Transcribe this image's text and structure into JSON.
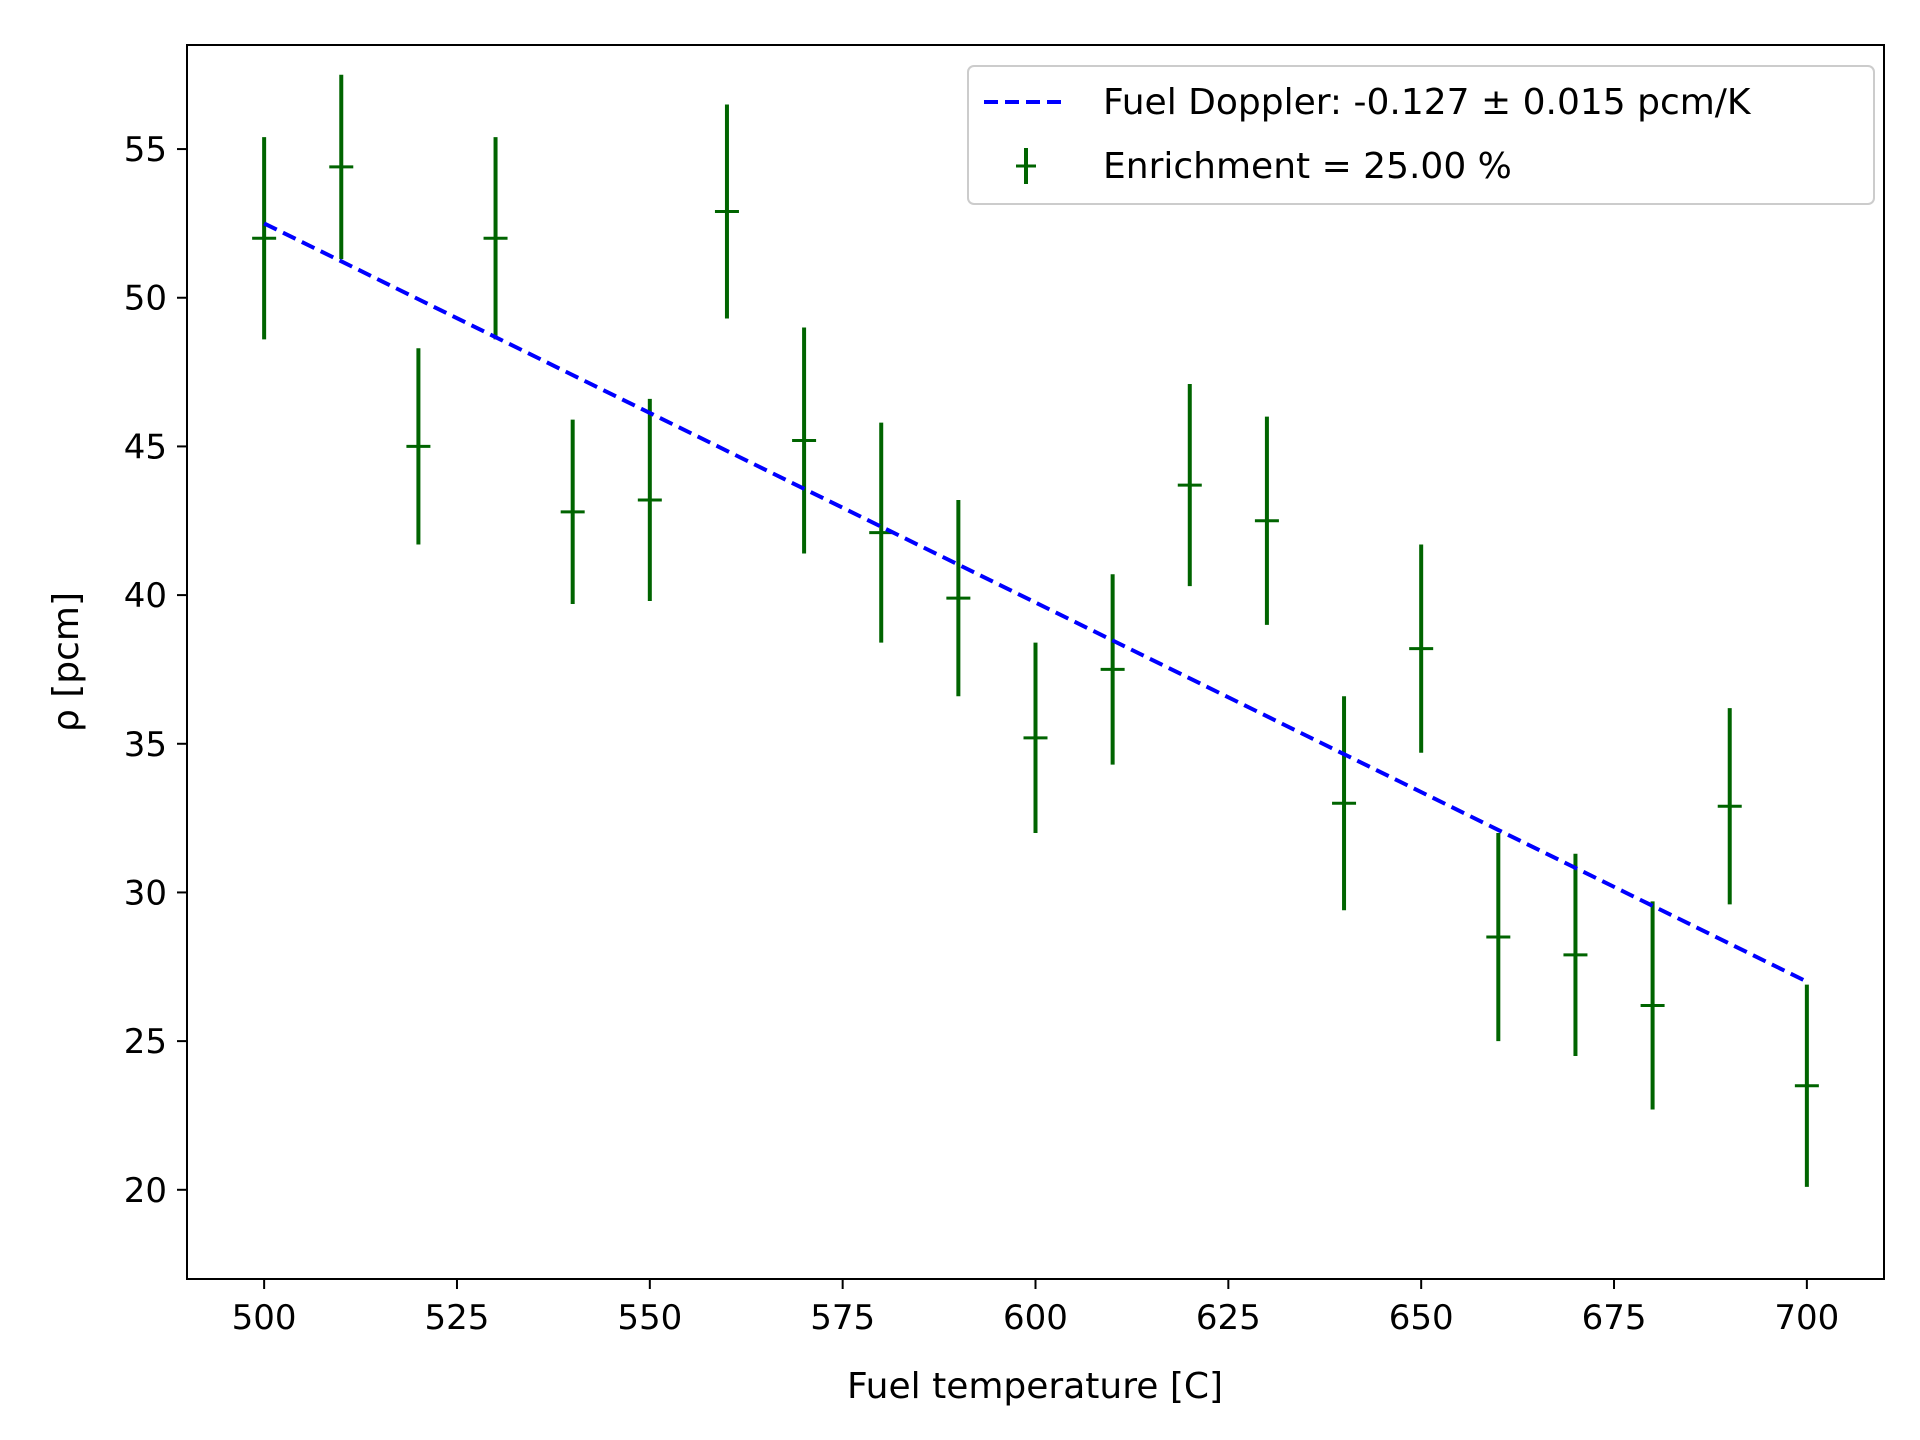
{
  "chart_data": {
    "type": "scatter",
    "title": "",
    "xlabel": "Fuel temperature [C]",
    "ylabel": "ρ [pcm]",
    "xlim": [
      490,
      710
    ],
    "ylim": [
      17,
      58.5
    ],
    "xticks": [
      500,
      525,
      550,
      575,
      600,
      625,
      650,
      675,
      700
    ],
    "yticks": [
      20,
      25,
      30,
      35,
      40,
      45,
      50,
      55
    ],
    "grid": false,
    "legend_position": "top-right",
    "series": [
      {
        "name": "Enrichment = 25.00 %",
        "kind": "errorbar",
        "color": "#006400",
        "x": [
          500,
          510,
          520,
          530,
          540,
          550,
          560,
          570,
          580,
          590,
          600,
          610,
          620,
          630,
          640,
          650,
          660,
          670,
          680,
          690,
          700
        ],
        "y": [
          52.0,
          54.4,
          45.0,
          52.0,
          42.8,
          43.2,
          52.9,
          45.2,
          42.1,
          39.9,
          35.2,
          37.5,
          43.7,
          42.5,
          33.0,
          38.2,
          28.5,
          27.9,
          26.2,
          32.9,
          23.5
        ],
        "yerr": [
          3.4,
          3.1,
          3.3,
          3.4,
          3.1,
          3.4,
          3.6,
          3.8,
          3.7,
          3.3,
          3.2,
          3.2,
          3.4,
          3.5,
          3.6,
          3.5,
          3.5,
          3.4,
          3.5,
          3.3,
          3.4
        ]
      },
      {
        "name": "Fuel Doppler: -0.127 ± 0.015 pcm/K",
        "kind": "line",
        "style": "dashed",
        "color": "#0000ff",
        "x": [
          500,
          700
        ],
        "y": [
          52.5,
          27.0
        ]
      }
    ]
  }
}
